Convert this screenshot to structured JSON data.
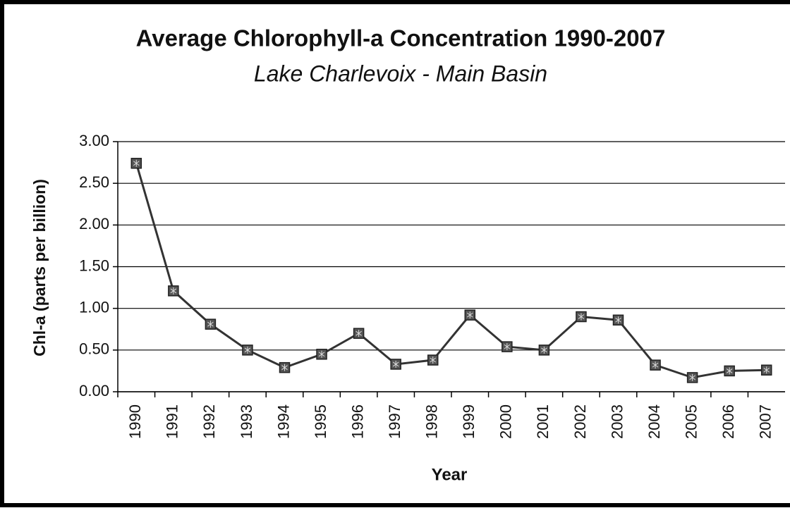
{
  "chart_data": {
    "type": "line",
    "title": "Average Chlorophyll-a Concentration 1990-2007",
    "subtitle": "Lake Charlevoix - Main Basin",
    "x_label": "Year",
    "y_label": "Chl-a (parts per billion)",
    "categories": [
      "1990",
      "1991",
      "1992",
      "1993",
      "1994",
      "1995",
      "1996",
      "1997",
      "1998",
      "1999",
      "2000",
      "2001",
      "2002",
      "2003",
      "2004",
      "2005",
      "2006",
      "2007"
    ],
    "values": [
      2.74,
      1.21,
      0.81,
      0.5,
      0.29,
      0.45,
      0.7,
      0.33,
      0.38,
      0.92,
      0.54,
      0.5,
      0.9,
      0.86,
      0.32,
      0.17,
      0.25,
      0.26
    ],
    "color": "#333333",
    "ylim": [
      0,
      3
    ],
    "yticks": [
      {
        "value": 0,
        "label": "0.00"
      },
      {
        "value": 0.5,
        "label": "0.50"
      },
      {
        "value": 1,
        "label": "1.00"
      },
      {
        "value": 1.5,
        "label": "1.50"
      },
      {
        "value": 2,
        "label": "2.00"
      },
      {
        "value": 2.5,
        "label": "2.50"
      },
      {
        "value": 3,
        "label": "3.00"
      }
    ],
    "grid": true
  }
}
